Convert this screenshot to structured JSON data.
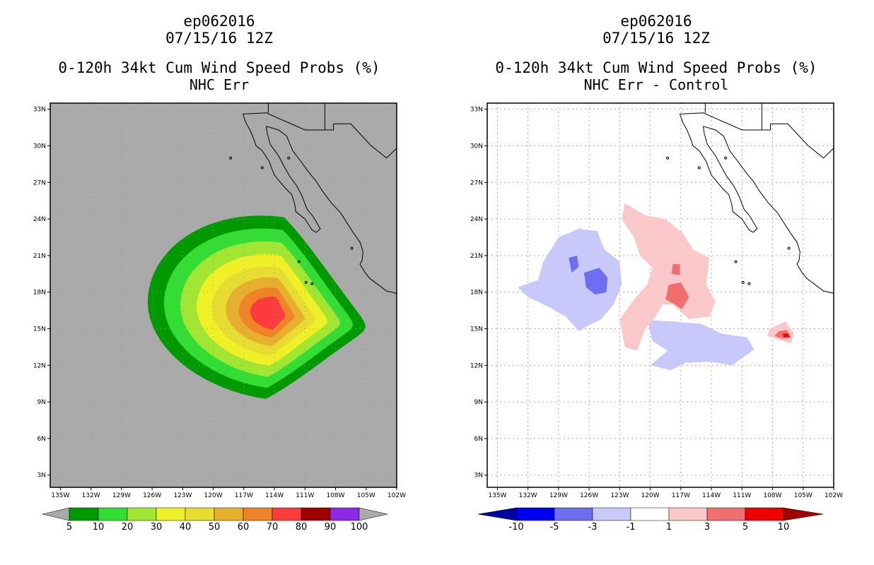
{
  "chart_data": [
    {
      "type": "heatmap",
      "title_lines": [
        "ep062016",
        "07/15/16 12Z",
        "0-120h 34kt Cum Wind Speed Probs (%)",
        "NHC Err"
      ],
      "lat_ticks": [
        "33N",
        "30N",
        "27N",
        "24N",
        "21N",
        "18N",
        "15N",
        "12N",
        "9N",
        "6N",
        "3N"
      ],
      "lon_ticks": [
        "135W",
        "132W",
        "129W",
        "126W",
        "123W",
        "120W",
        "117W",
        "114W",
        "111W",
        "108W",
        "105W",
        "102W"
      ],
      "lat_range": [
        2,
        33.5
      ],
      "lon_range": [
        -136,
        -102
      ],
      "colorbar": {
        "labels": [
          "5",
          "10",
          "20",
          "30",
          "40",
          "50",
          "60",
          "70",
          "80",
          "90",
          "100"
        ],
        "colors": [
          "#009900",
          "#33dd33",
          "#a0e632",
          "#f0f028",
          "#e6dc32",
          "#e6af2d",
          "#f08228",
          "#fa3c3c",
          "#a00000",
          "#8c28e6"
        ]
      },
      "field": {
        "description": "34kt cumulative wind speed probability swath centered ~16N, max near 113W",
        "levels": [
          5,
          10,
          20,
          30,
          40,
          50,
          60,
          70
        ],
        "center_lon": -114,
        "center_lat": 16.2,
        "tip_lon": -105.2,
        "tip_lat": 14.8
      }
    },
    {
      "type": "heatmap",
      "title_lines": [
        "ep062016",
        "07/15/16 12Z",
        "0-120h 34kt Cum Wind Speed Probs (%)",
        "NHC Err - Control"
      ],
      "lat_ticks": [
        "33N",
        "30N",
        "27N",
        "24N",
        "21N",
        "18N",
        "15N",
        "12N",
        "9N",
        "6N",
        "3N"
      ],
      "lon_ticks": [
        "135W",
        "132W",
        "129W",
        "126W",
        "123W",
        "120W",
        "117W",
        "114W",
        "111W",
        "108W",
        "105W",
        "102W"
      ],
      "lat_range": [
        2,
        33.5
      ],
      "lon_range": [
        -136,
        -102
      ],
      "colorbar": {
        "labels": [
          "-10",
          "-5",
          "-3",
          "-1",
          "1",
          "3",
          "5",
          "10"
        ],
        "colors": [
          "#0000a0",
          "#0000f0",
          "#6e6ef0",
          "#c8c8fa",
          "#ffffff",
          "#fac8c8",
          "#f06e6e",
          "#f00000",
          "#a00000"
        ]
      },
      "field": {
        "description": "Difference field: negative (blue) patches near 126W 19N and 114W 13N, positive (red) patches near 117W 18N and 106W 14.5N"
      }
    }
  ]
}
